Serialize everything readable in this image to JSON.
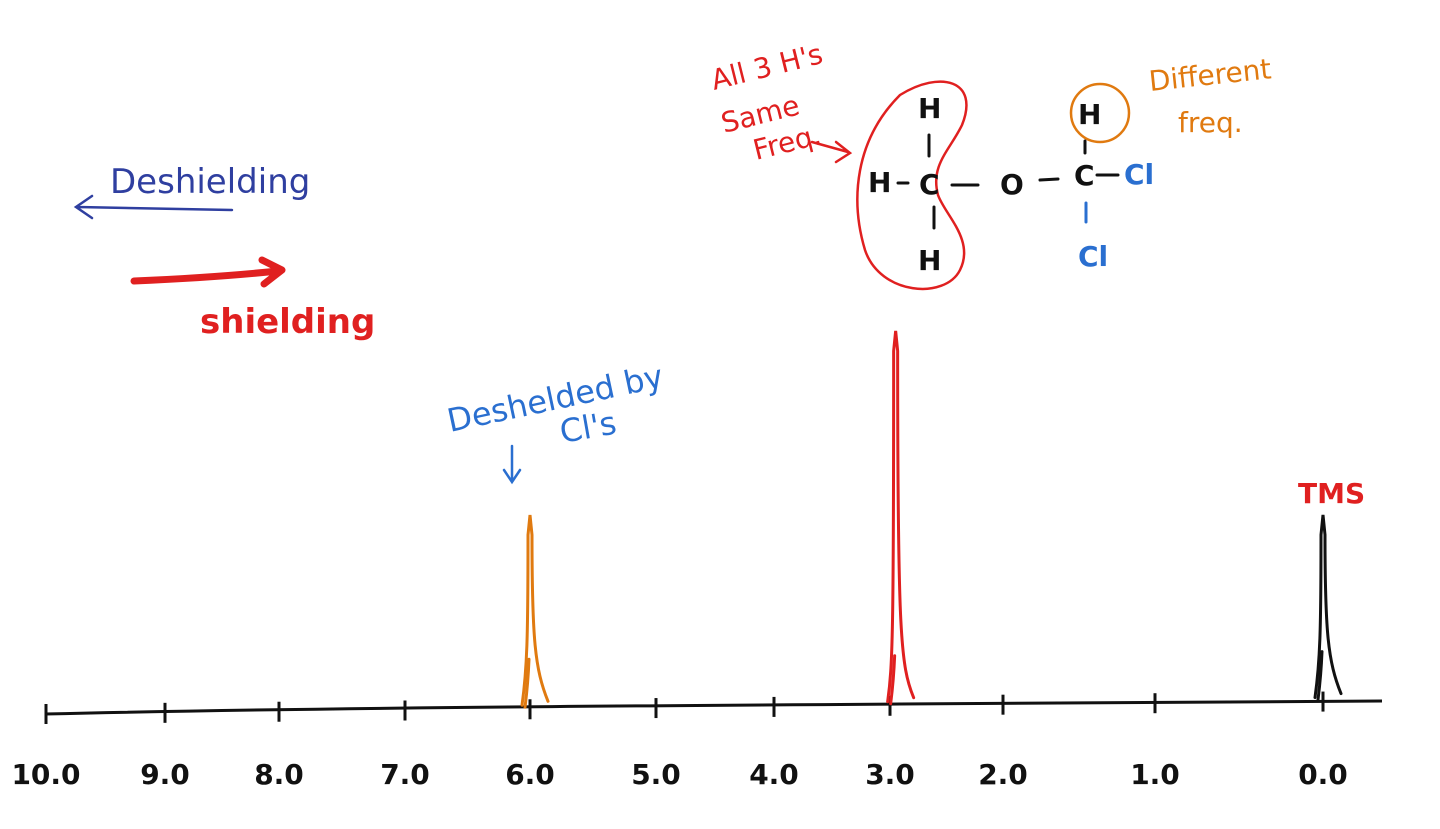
{
  "colors": {
    "black": "#111111",
    "red": "#e02020",
    "blue_dark": "#2f3fa0",
    "blue": "#2a6fd0",
    "orange": "#e07a10"
  },
  "axis": {
    "tick_labels": [
      "10.0",
      "9.0",
      "8.0",
      "7.0",
      "6.0",
      "5.0",
      "4.0",
      "3.0",
      "2.0",
      "1.0",
      "0.0"
    ],
    "ticks": [
      10,
      9,
      8,
      7,
      6,
      5,
      4,
      3,
      2,
      1,
      0
    ]
  },
  "peaks": [
    {
      "ppm": 6.0,
      "relative_height": 0.97,
      "color": "orange"
    },
    {
      "ppm": 2.95,
      "relative_height": 1.92,
      "color": "red"
    },
    {
      "ppm": 0.0,
      "relative_height": 0.93,
      "color": "black"
    }
  ],
  "annotations": {
    "deshielding": "Deshielding",
    "shielding": "shielding",
    "deshielded_line1": "Deshelded by",
    "deshielded_line2": "Cl's",
    "all3_line1": "All 3 H's",
    "all3_line2": "Same",
    "all3_line3": "Freq.",
    "different_line1": "Different",
    "different_line2": "freq.",
    "tms": "TMS"
  },
  "molecule": {
    "h_top_left": "H",
    "h_left": "H",
    "c_left": "C",
    "h_bottom_left": "H",
    "o": "O",
    "c_right": "C",
    "h_top_right": "H",
    "cl_right": "Cl",
    "cl_bottom": "Cl"
  }
}
